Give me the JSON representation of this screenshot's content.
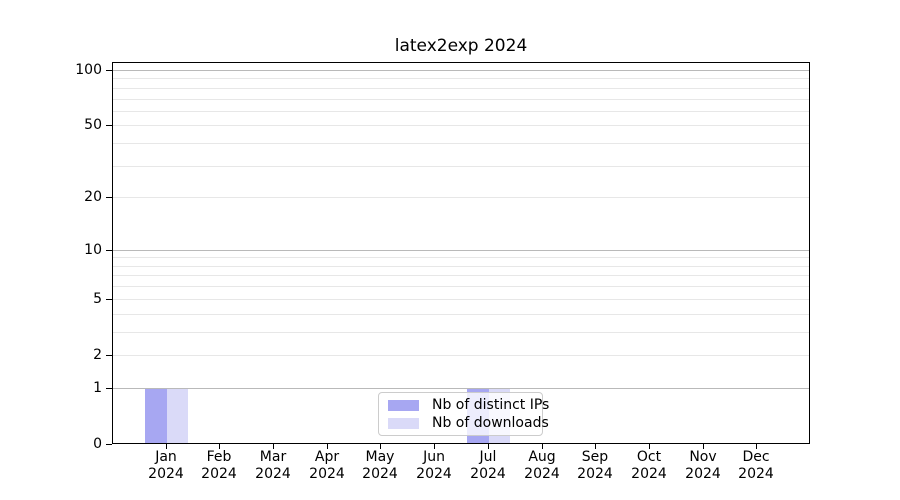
{
  "title": "latex2exp 2024",
  "colors": {
    "distinct_ips_bar": "#a7a7f2",
    "downloads_bar": "#dadaf8",
    "major_grid": "#b9b9b9",
    "minor_grid": "#e7e7e7",
    "axis": "#000000",
    "legend_border": "#cccccc"
  },
  "legend": {
    "items": [
      {
        "label": "Nb of distinct IPs",
        "color": "#a7a7f2"
      },
      {
        "label": "Nb of downloads",
        "color": "#dadaf8"
      }
    ]
  },
  "chart_data": {
    "type": "bar",
    "title": "latex2exp 2024",
    "categories": [
      "Jan 2024",
      "Feb 2024",
      "Mar 2024",
      "Apr 2024",
      "May 2024",
      "Jun 2024",
      "Jul 2024",
      "Aug 2024",
      "Sep 2024",
      "Oct 2024",
      "Nov 2024",
      "Dec 2024"
    ],
    "series": [
      {
        "name": "Nb of distinct IPs",
        "color": "#a7a7f2",
        "values": [
          1,
          0,
          0,
          0,
          0,
          0,
          1,
          0,
          0,
          0,
          0,
          0
        ]
      },
      {
        "name": "Nb of downloads",
        "color": "#dadaf8",
        "values": [
          1,
          0,
          0,
          0,
          0,
          0,
          1,
          0,
          0,
          0,
          0,
          0
        ]
      }
    ],
    "xlabel": "",
    "ylabel": "",
    "y_scale": "log10(1+y)",
    "y_tick_values": [
      0,
      1,
      2,
      5,
      10,
      20,
      50,
      100
    ],
    "y_tick_labels": [
      "0",
      "1",
      "2",
      "5",
      "10",
      "20",
      "50",
      "100"
    ],
    "y_major_gridlines": [
      1,
      10,
      100
    ],
    "y_minor_gridlines": [
      2,
      3,
      4,
      5,
      6,
      7,
      8,
      9,
      20,
      30,
      40,
      50,
      60,
      70,
      80,
      90
    ],
    "ylim": [
      0,
      110
    ],
    "grid": true,
    "legend_position": "inside-bottom-center"
  }
}
